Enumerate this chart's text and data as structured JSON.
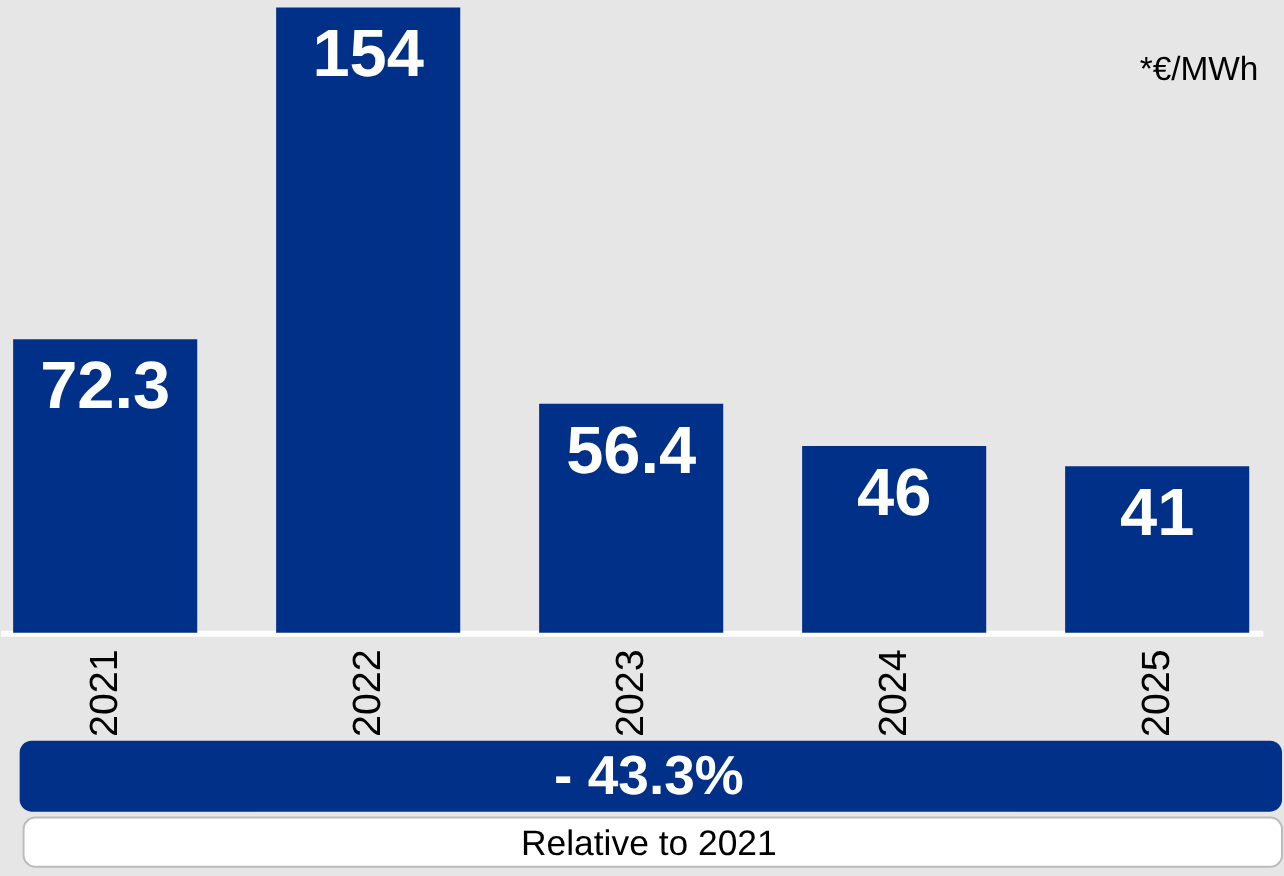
{
  "chart_data": {
    "type": "bar",
    "categories": [
      "2021",
      "2022",
      "2023",
      "2024",
      "2025"
    ],
    "values": [
      72.3,
      154,
      56.4,
      46,
      41
    ],
    "color": "#003087",
    "data_labels": true,
    "annotations": [
      "*€/MWh",
      "- 43.3%",
      "Relative to 2021"
    ]
  }
}
